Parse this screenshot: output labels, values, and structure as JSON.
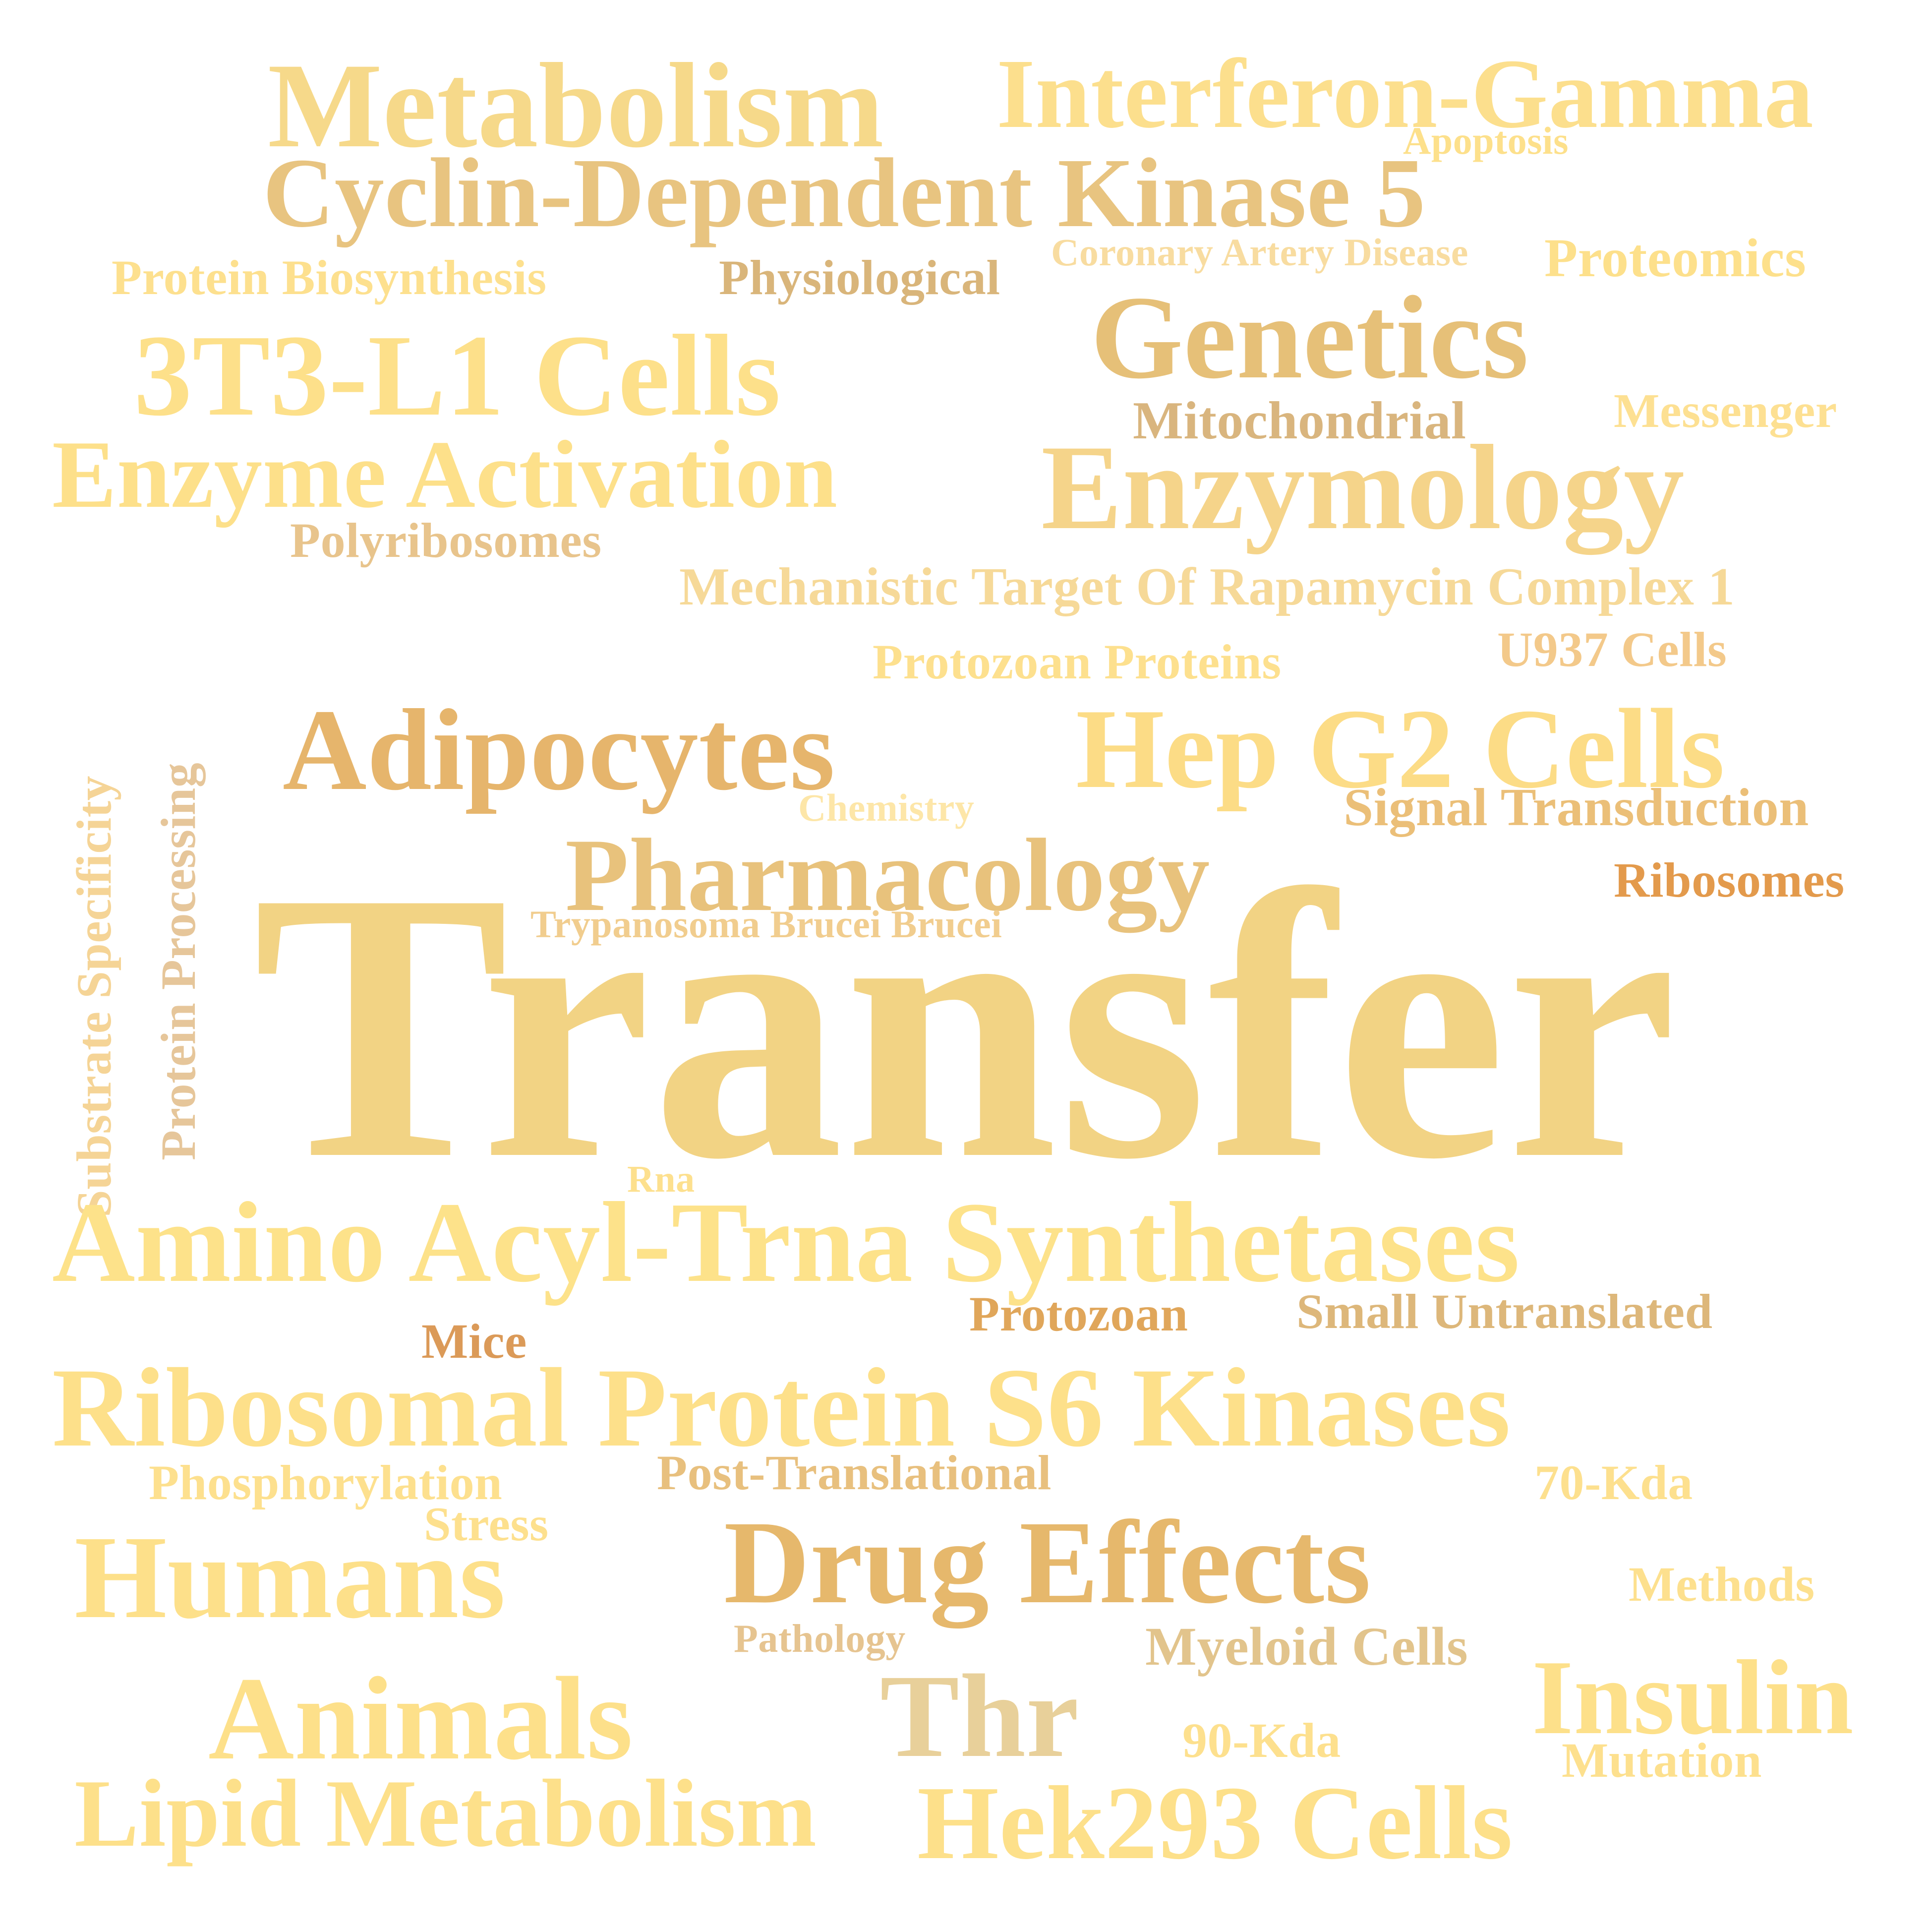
{
  "words": [
    {
      "id": "transfer",
      "text": "Transfer",
      "color": "#f2d384"
    },
    {
      "id": "metabolism",
      "text": "Metabolism",
      "color": "#f6d98a"
    },
    {
      "id": "interferon-gamma",
      "text": "Interferon-Gamma",
      "color": "#fcdf8d"
    },
    {
      "id": "apoptosis",
      "text": "Apoptosis",
      "color": "#fde08b"
    },
    {
      "id": "cyclin-dependent-kinase-5",
      "text": "Cyclin-Dependent Kinase 5",
      "color": "#e8c480"
    },
    {
      "id": "protein-biosynthesis",
      "text": "Protein Biosynthesis",
      "color": "#fde08e"
    },
    {
      "id": "physiological",
      "text": "Physiological",
      "color": "#d9b57a"
    },
    {
      "id": "coronary-artery-disease",
      "text": "Coronary Artery Disease",
      "color": "#f8dca0"
    },
    {
      "id": "proteomics",
      "text": "Proteomics",
      "color": "#fde08b"
    },
    {
      "id": "genetics",
      "text": "Genetics",
      "color": "#e6c078"
    },
    {
      "id": "3t3-l1-cells",
      "text": "3T3-L1 Cells",
      "color": "#fde08a"
    },
    {
      "id": "mitochondrial",
      "text": "Mitochondrial",
      "color": "#d9b57e"
    },
    {
      "id": "messenger",
      "text": "Messenger",
      "color": "#fde092"
    },
    {
      "id": "enzyme-activation",
      "text": "Enzyme Activation",
      "color": "#fde08a"
    },
    {
      "id": "enzymology",
      "text": "Enzymology",
      "color": "#f5d48a"
    },
    {
      "id": "polyribosomes",
      "text": "Polyribosomes",
      "color": "#e8c48c"
    },
    {
      "id": "mtorc1",
      "text": "Mechanistic Target Of Rapamycin Complex 1",
      "color": "#f6d998"
    },
    {
      "id": "protozoan-proteins",
      "text": "Protozoan Proteins",
      "color": "#fde08e"
    },
    {
      "id": "u937-cells",
      "text": "U937 Cells",
      "color": "#f3c98a"
    },
    {
      "id": "substrate-specificity",
      "text": "Substrate Specificity",
      "color": "#f5d496"
    },
    {
      "id": "protein-processing",
      "text": "Protein Processing",
      "color": "#e6c69a"
    },
    {
      "id": "adipocytes",
      "text": "Adipocytes",
      "color": "#e6b56c"
    },
    {
      "id": "hep-g2-cells",
      "text": "Hep G2 Cells",
      "color": "#fcdc86"
    },
    {
      "id": "chemistry",
      "text": "Chemistry",
      "color": "#fde6a8"
    },
    {
      "id": "signal-transduction",
      "text": "Signal Transduction",
      "color": "#ebbf78"
    },
    {
      "id": "pharmacology",
      "text": "Pharmacology",
      "color": "#e8c27c"
    },
    {
      "id": "ribosomes",
      "text": "Ribosomes",
      "color": "#e39a4c"
    },
    {
      "id": "trypanosoma-brucei-brucei",
      "text": "Trypanosoma Brucei Brucei",
      "color": "#f1cd8e"
    },
    {
      "id": "rna",
      "text": "Rna",
      "color": "#fde08e"
    },
    {
      "id": "amino-acyl-trna-synthetases",
      "text": "Amino Acyl-Trna Synthetases",
      "color": "#fde28a"
    },
    {
      "id": "protozoan",
      "text": "Protozoan",
      "color": "#e0a65a"
    },
    {
      "id": "small-untranslated",
      "text": "Small Untranslated",
      "color": "#ddb77a"
    },
    {
      "id": "mice",
      "text": "Mice",
      "color": "#db9a58"
    },
    {
      "id": "ribosomal-protein-s6-kinases",
      "text": "Ribosomal Protein S6 Kinases",
      "color": "#fde08a"
    },
    {
      "id": "phosphorylation",
      "text": "Phosphorylation",
      "color": "#fde08e"
    },
    {
      "id": "post-translational",
      "text": "Post-Translational",
      "color": "#e8c07e"
    },
    {
      "id": "70-kda",
      "text": "70-Kda",
      "color": "#fde08e"
    },
    {
      "id": "stress",
      "text": "Stress",
      "color": "#fde08e"
    },
    {
      "id": "humans",
      "text": "Humans",
      "color": "#fde08a"
    },
    {
      "id": "drug-effects",
      "text": "Drug Effects",
      "color": "#e6b86c"
    },
    {
      "id": "methods",
      "text": "Methods",
      "color": "#fde08e"
    },
    {
      "id": "pathology",
      "text": "Pathology",
      "color": "#e6c490"
    },
    {
      "id": "myeloid-cells",
      "text": "Myeloid Cells",
      "color": "#e2c48c"
    },
    {
      "id": "animals",
      "text": "Animals",
      "color": "#fde08a"
    },
    {
      "id": "thr",
      "text": "Thr",
      "color": "#e8d09a"
    },
    {
      "id": "90-kda",
      "text": "90-Kda",
      "color": "#fde08e"
    },
    {
      "id": "insulin",
      "text": "Insulin",
      "color": "#fde08a"
    },
    {
      "id": "mutation",
      "text": "Mutation",
      "color": "#fde08e"
    },
    {
      "id": "lipid-metabolism",
      "text": "Lipid Metabolism",
      "color": "#fde08a"
    },
    {
      "id": "hek293-cells",
      "text": "Hek293 Cells",
      "color": "#fde08a"
    }
  ]
}
